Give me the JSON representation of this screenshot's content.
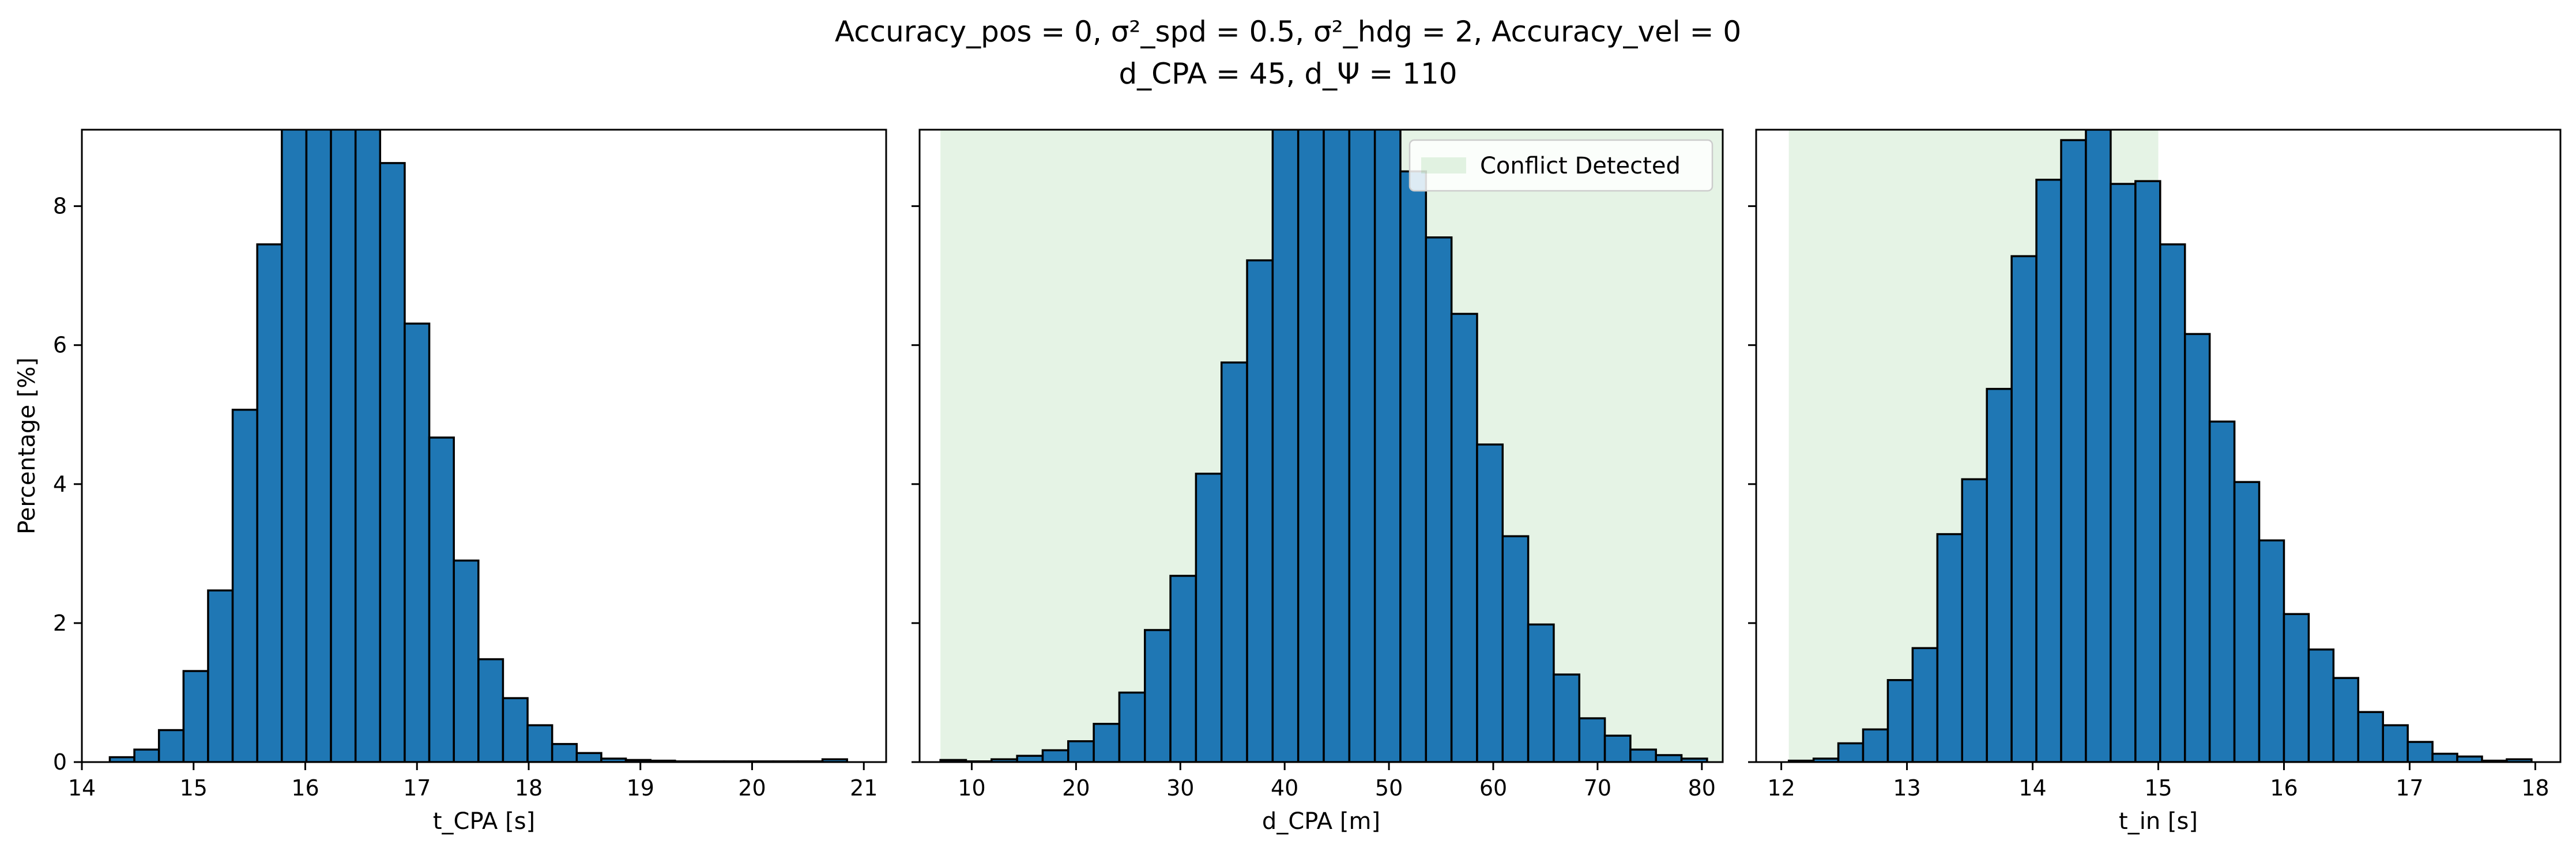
{
  "figure": {
    "title_line1": "Accuracy_pos = 0, σ²_spd = 0.5, σ²_hdg = 2, Accuracy_vel = 0",
    "title_line2": "d_CPA = 45, d_Ψ = 110"
  },
  "chart_data": [
    {
      "type": "bar",
      "title": "",
      "xlabel": "t_CPA [s]",
      "ylabel": "Percentage [%]",
      "xlim": [
        14.0,
        21.2
      ],
      "ylim": [
        0,
        9.1
      ],
      "xticks": [
        14,
        15,
        16,
        17,
        18,
        19,
        20,
        21
      ],
      "yticks": [
        0,
        2,
        4,
        6,
        8
      ],
      "bin_start": 14.25,
      "bin_width": 0.22,
      "values": [
        0.07,
        0.18,
        0.46,
        1.31,
        2.47,
        5.07,
        7.45,
        9.5,
        9.5,
        9.5,
        9.5,
        8.62,
        6.31,
        4.67,
        2.9,
        1.48,
        0.92,
        0.53,
        0.26,
        0.13,
        0.05,
        0.03,
        0.02,
        0.01,
        0.01,
        0.01,
        0.01,
        0.01,
        0.01,
        0.04
      ],
      "shaded_region": null,
      "legend": null
    },
    {
      "type": "bar",
      "title": "",
      "xlabel": "d_CPA [m]",
      "ylabel": "",
      "xlim": [
        5.0,
        82.0
      ],
      "ylim": [
        0,
        9.1
      ],
      "xticks": [
        10,
        20,
        30,
        40,
        50,
        60,
        70,
        80
      ],
      "yticks": [
        0,
        2,
        4,
        6,
        8
      ],
      "bin_start": 7.0,
      "bin_width": 2.45,
      "values": [
        0.03,
        0.01,
        0.04,
        0.09,
        0.17,
        0.3,
        0.55,
        1.0,
        1.9,
        2.68,
        4.15,
        5.75,
        7.22,
        9.5,
        9.5,
        9.5,
        9.5,
        9.5,
        8.5,
        7.55,
        6.45,
        4.57,
        3.25,
        1.98,
        1.26,
        0.63,
        0.38,
        0.18,
        0.1,
        0.05
      ],
      "shaded_region": [
        7.0,
        82.0
      ],
      "legend": {
        "label": "Conflict Detected",
        "position": "top-right"
      }
    },
    {
      "type": "bar",
      "title": "",
      "xlabel": "t_in [s]",
      "ylabel": "",
      "xlim": [
        11.8,
        18.2
      ],
      "ylim": [
        0,
        9.1
      ],
      "xticks": [
        12,
        13,
        14,
        15,
        16,
        17,
        18
      ],
      "yticks": [
        0,
        2,
        4,
        6,
        8
      ],
      "bin_start": 12.06,
      "bin_width": 0.197,
      "values": [
        0.02,
        0.05,
        0.27,
        0.47,
        1.18,
        1.64,
        3.28,
        4.07,
        5.37,
        7.28,
        8.38,
        8.95,
        9.1,
        8.32,
        8.36,
        7.45,
        6.16,
        4.9,
        4.03,
        3.19,
        2.13,
        1.62,
        1.21,
        0.72,
        0.53,
        0.29,
        0.12,
        0.08,
        0.02,
        0.04
      ],
      "shaded_region": [
        12.06,
        15.0
      ],
      "legend": null
    }
  ]
}
